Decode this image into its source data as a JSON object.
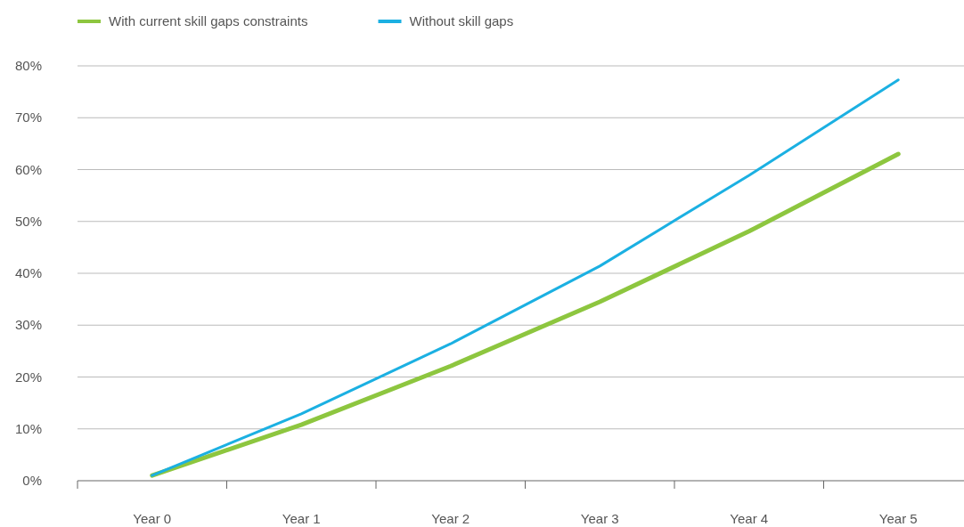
{
  "chart_data": {
    "type": "line",
    "categories": [
      "Year 0",
      "Year 1",
      "Year 2",
      "Year 3",
      "Year 4",
      "Year 5"
    ],
    "series": [
      {
        "name": "With current skill gaps constraints",
        "color": "#8dc63f",
        "values": [
          1,
          10.8,
          22.1,
          34.5,
          48.1,
          63
        ]
      },
      {
        "name": "Without skill gaps",
        "color": "#1bb0e2",
        "values": [
          1,
          12.9,
          26.4,
          41.4,
          58.9,
          77.3
        ]
      }
    ],
    "ylim": [
      0,
      80
    ],
    "yticks": [
      {
        "value": 0,
        "label": "0%"
      },
      {
        "value": 10,
        "label": "10%"
      },
      {
        "value": 20,
        "label": "20%"
      },
      {
        "value": 30,
        "label": "30%"
      },
      {
        "value": 40,
        "label": "40%"
      },
      {
        "value": 50,
        "label": "50%"
      },
      {
        "value": 60,
        "label": "60%"
      },
      {
        "value": 70,
        "label": "70%"
      },
      {
        "value": 80,
        "label": "80%"
      }
    ],
    "grid": "y",
    "legend": "top left",
    "marker": "none",
    "line_style": "solid"
  }
}
